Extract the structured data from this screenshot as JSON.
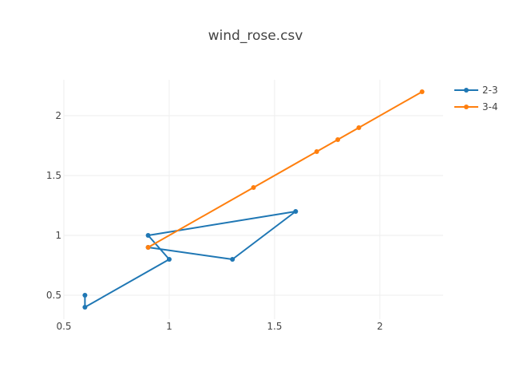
{
  "chart_data": {
    "type": "line",
    "title": "wind_rose.csv",
    "xlabel": "",
    "ylabel": "",
    "xlim": [
      0.5,
      2.3
    ],
    "ylim": [
      0.3,
      2.3
    ],
    "x_ticks": [
      0.5,
      1,
      1.5,
      2
    ],
    "x_tick_labels": [
      "0.5",
      "1",
      "1.5",
      "2"
    ],
    "y_ticks": [
      0.5,
      1,
      1.5,
      2
    ],
    "y_tick_labels": [
      "0.5",
      "1",
      "1.5",
      "2"
    ],
    "grid": true,
    "legend_position": "top-right",
    "series": [
      {
        "name": "2-3",
        "color": "#1f77b4",
        "x": [
          0.6,
          0.6,
          1.0,
          0.9,
          1.6,
          1.3,
          0.9
        ],
        "y": [
          0.5,
          0.4,
          0.8,
          1.0,
          1.2,
          0.8,
          0.9
        ]
      },
      {
        "name": "3-4",
        "color": "#ff7f0e",
        "x": [
          0.9,
          1.4,
          1.7,
          1.8,
          1.9,
          2.2
        ],
        "y": [
          0.9,
          1.4,
          1.7,
          1.8,
          1.9,
          2.2
        ]
      }
    ]
  }
}
